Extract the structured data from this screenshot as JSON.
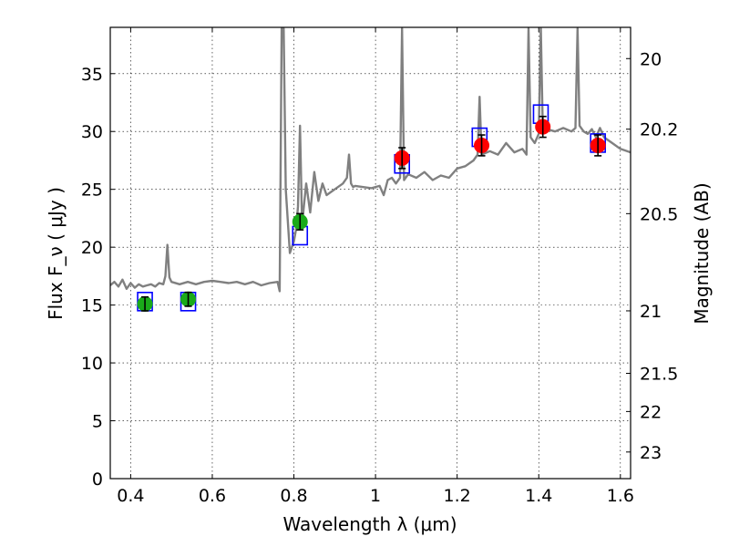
{
  "chart_data": {
    "type": "scatter",
    "xlabel": "Wavelength  λ (μm)",
    "ylabel": "Flux  F_ν  ( μJy )",
    "ylabel_right": "Magnitude (AB)",
    "xlim": [
      0.35,
      1.625
    ],
    "ylim": [
      0,
      39
    ],
    "grid": true,
    "xticks": [
      "0.4",
      "0.6",
      "0.8",
      "1",
      "1.2",
      "1.4",
      "1.6"
    ],
    "yticks": [
      "0",
      "5",
      "10",
      "15",
      "20",
      "25",
      "30",
      "35"
    ],
    "magnitude_ticks": [
      {
        "label": "20",
        "flux": 36.3
      },
      {
        "label": "20.2",
        "flux": 30.2
      },
      {
        "label": "20.5",
        "flux": 22.9
      },
      {
        "label": "21",
        "flux": 14.5
      },
      {
        "label": "21.5",
        "flux": 9.1
      },
      {
        "label": "22",
        "flux": 5.8
      },
      {
        "label": "23",
        "flux": 2.3
      }
    ],
    "colors": {
      "spectrum": "#808080",
      "optical_points": "#1aaa1a",
      "nir_points": "#ff0000",
      "model_boxes": "#0000ff",
      "errorbars": "#000000"
    },
    "series": [
      {
        "kind": "spectrum",
        "x": [
          0.35,
          0.36,
          0.37,
          0.38,
          0.39,
          0.4,
          0.41,
          0.42,
          0.43,
          0.44,
          0.45,
          0.46,
          0.47,
          0.48,
          0.485,
          0.49,
          0.495,
          0.5,
          0.52,
          0.54,
          0.56,
          0.58,
          0.6,
          0.62,
          0.64,
          0.66,
          0.68,
          0.7,
          0.72,
          0.74,
          0.76,
          0.765,
          0.77,
          0.775,
          0.78,
          0.79,
          0.8,
          0.805,
          0.81,
          0.815,
          0.82,
          0.83,
          0.84,
          0.85,
          0.86,
          0.87,
          0.88,
          0.9,
          0.92,
          0.93,
          0.935,
          0.94,
          0.945,
          0.95,
          0.97,
          0.99,
          1.01,
          1.02,
          1.03,
          1.04,
          1.05,
          1.06,
          1.065,
          1.07,
          1.08,
          1.1,
          1.12,
          1.14,
          1.16,
          1.18,
          1.2,
          1.22,
          1.24,
          1.25,
          1.255,
          1.26,
          1.28,
          1.3,
          1.32,
          1.34,
          1.36,
          1.37,
          1.375,
          1.38,
          1.39,
          1.4,
          1.405,
          1.41,
          1.42,
          1.44,
          1.46,
          1.48,
          1.49,
          1.495,
          1.5,
          1.51,
          1.52,
          1.53,
          1.54,
          1.55,
          1.56,
          1.58,
          1.6,
          1.625
        ],
        "y": [
          16.7,
          17.0,
          16.6,
          17.2,
          16.4,
          16.9,
          16.5,
          16.8,
          16.6,
          16.7,
          16.8,
          16.6,
          16.9,
          16.8,
          17.5,
          20.2,
          17.4,
          17.0,
          16.8,
          17.0,
          16.8,
          17.0,
          17.1,
          17.0,
          16.9,
          17.0,
          16.8,
          17.0,
          16.7,
          16.9,
          17.0,
          16.2,
          38.9,
          38.9,
          25.0,
          19.5,
          20.5,
          21.5,
          23.5,
          30.5,
          22.0,
          25.5,
          23.0,
          26.5,
          24.0,
          25.5,
          24.5,
          25.0,
          25.5,
          26.0,
          28.0,
          25.5,
          25.2,
          25.3,
          25.2,
          25.1,
          25.3,
          24.5,
          25.8,
          26.0,
          25.5,
          26.0,
          38.9,
          25.8,
          26.3,
          26.0,
          26.5,
          25.8,
          26.2,
          26.0,
          26.8,
          27.0,
          27.5,
          28.0,
          33.0,
          28.0,
          28.3,
          28.0,
          29.0,
          28.2,
          28.5,
          28.0,
          38.9,
          29.5,
          29.0,
          29.8,
          38.9,
          30.0,
          30.2,
          30.0,
          30.3,
          30.0,
          30.3,
          38.9,
          30.5,
          30.0,
          29.8,
          30.2,
          29.5,
          30.3,
          29.5,
          29.0,
          28.5,
          28.2
        ]
      },
      {
        "kind": "observed",
        "name": "",
        "color": "#1aaa1a",
        "points": [
          {
            "x": 0.435,
            "y": 15.1,
            "err": 0.6
          },
          {
            "x": 0.541,
            "y": 15.5,
            "err": 0.6
          },
          {
            "x": 0.815,
            "y": 22.2,
            "err": 0.7
          }
        ]
      },
      {
        "kind": "observed",
        "name": "",
        "color": "#ff0000",
        "points": [
          {
            "x": 1.065,
            "y": 27.7,
            "err": 0.9
          },
          {
            "x": 1.26,
            "y": 28.8,
            "err": 0.9
          },
          {
            "x": 1.41,
            "y": 30.4,
            "err": 0.9
          },
          {
            "x": 1.545,
            "y": 28.8,
            "err": 0.9
          }
        ]
      },
      {
        "kind": "model_boxes",
        "name": "",
        "color": "#0000ff",
        "points": [
          {
            "x": 0.435,
            "y": 15.3
          },
          {
            "x": 0.541,
            "y": 15.3
          },
          {
            "x": 0.815,
            "y": 21.0
          },
          {
            "x": 1.065,
            "y": 27.2
          },
          {
            "x": 1.255,
            "y": 29.5
          },
          {
            "x": 1.405,
            "y": 31.5
          },
          {
            "x": 1.545,
            "y": 29.0
          }
        ]
      }
    ]
  }
}
